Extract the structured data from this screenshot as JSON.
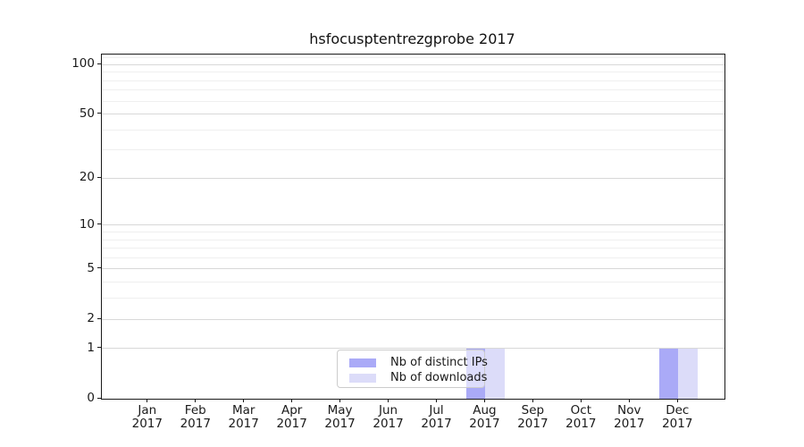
{
  "title": "hsfocusptentrezgprobe 2017",
  "legend": {
    "items": [
      {
        "label": "Nb of distinct IPs",
        "color": "#aaaaf7"
      },
      {
        "label": "Nb of downloads",
        "color": "#dcdcf9"
      }
    ]
  },
  "chart_data": {
    "type": "bar",
    "title": "hsfocusptentrezgprobe 2017",
    "categories": [
      "Jan 2017",
      "Feb 2017",
      "Mar 2017",
      "Apr 2017",
      "May 2017",
      "Jun 2017",
      "Jul 2017",
      "Aug 2017",
      "Sep 2017",
      "Oct 2017",
      "Nov 2017",
      "Dec 2017"
    ],
    "series": [
      {
        "name": "Nb of distinct IPs",
        "color": "#aaaaf7",
        "values": [
          0,
          0,
          0,
          0,
          0,
          0,
          0,
          1,
          0,
          0,
          0,
          1
        ]
      },
      {
        "name": "Nb of downloads",
        "color": "#dcdcf9",
        "values": [
          0,
          0,
          0,
          0,
          0,
          0,
          0,
          1,
          0,
          0,
          0,
          1
        ]
      }
    ],
    "xlabel": "",
    "ylabel": "",
    "y_scale": "log1p (position proportional to log2(value+1))",
    "ylim": [
      0,
      115
    ],
    "y_ticks": [
      0,
      1,
      2,
      5,
      10,
      20,
      50,
      100
    ],
    "y_minor_gridlines": [
      3,
      4,
      6,
      7,
      8,
      9,
      30,
      40,
      60,
      70,
      80,
      90,
      110
    ],
    "grid": true,
    "legend_position": "inside-bottom-center",
    "colors": {
      "grid_major": "#d8d8d8",
      "grid_minor": "#efefef",
      "spine": "#1a1a1a",
      "background": "#ffffff"
    }
  }
}
